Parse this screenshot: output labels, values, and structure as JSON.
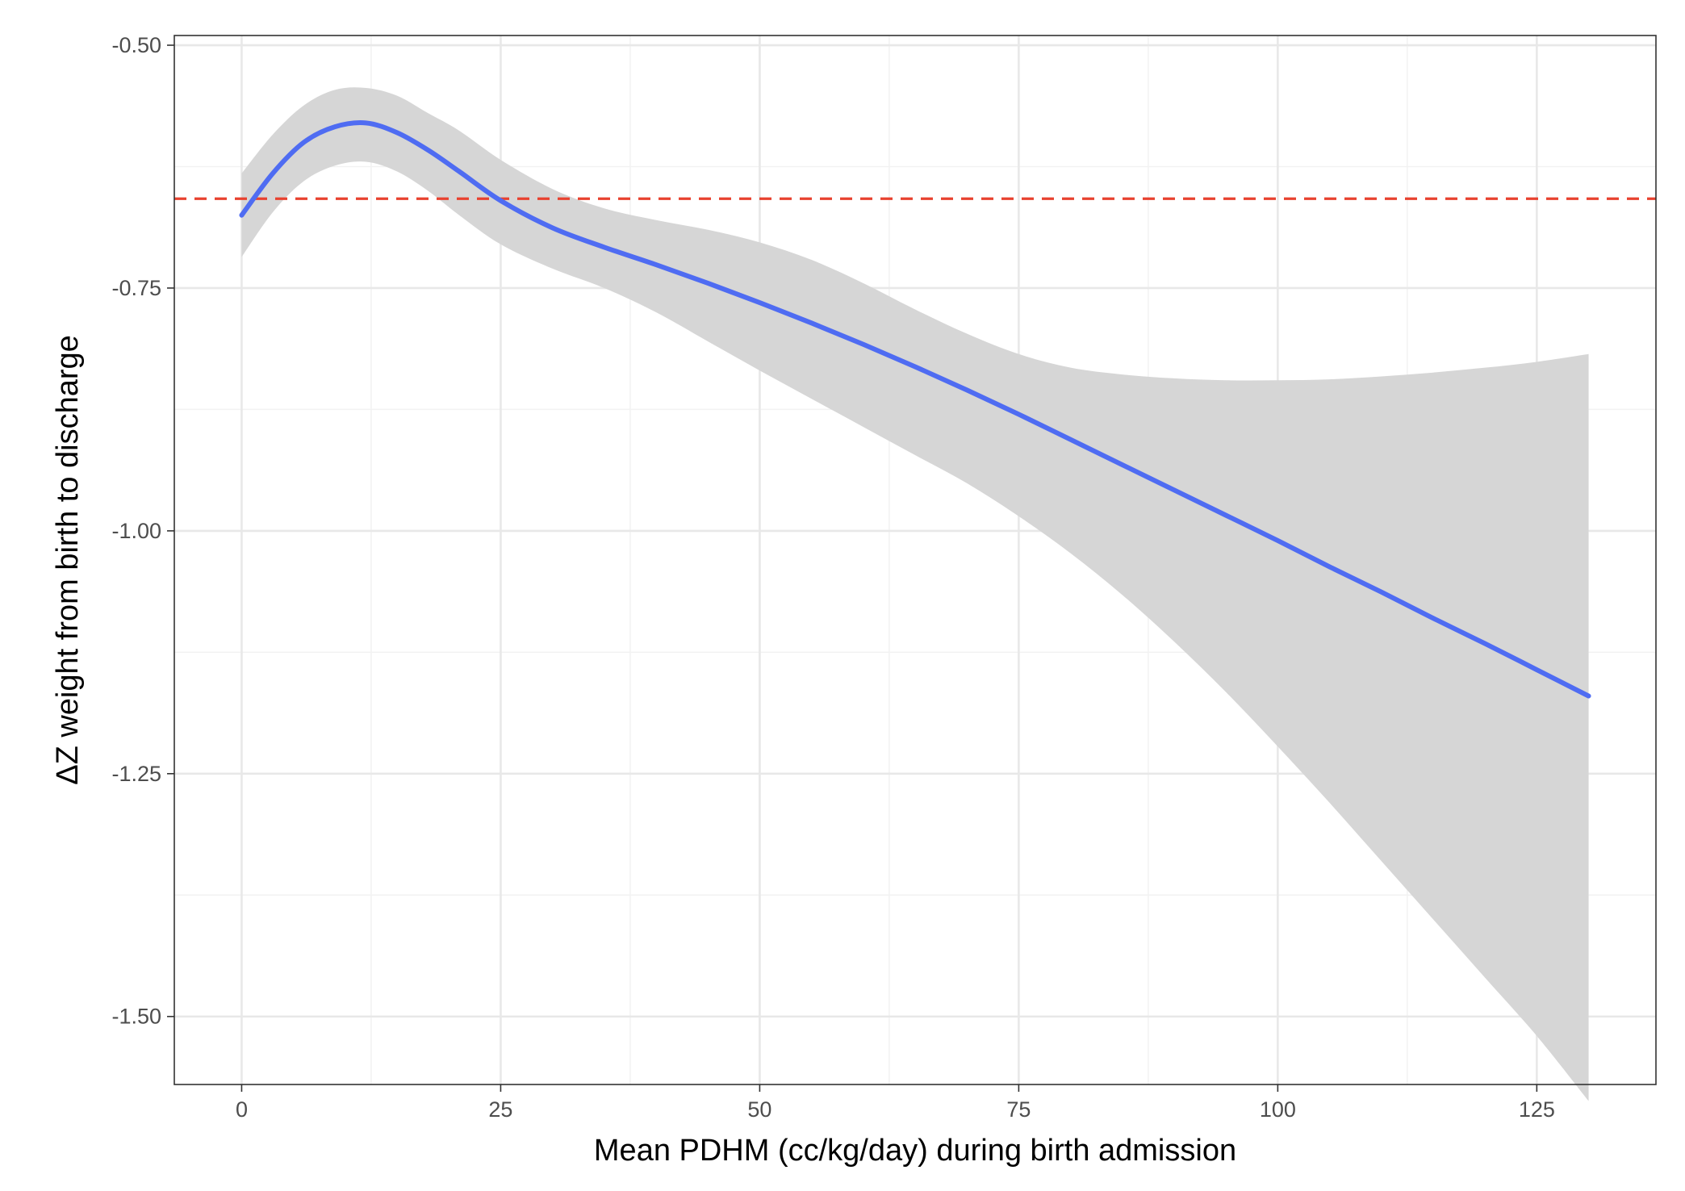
{
  "chart_data": {
    "type": "line",
    "title": "",
    "xlabel": "Mean PDHM (cc/kg/day) during birth admission",
    "ylabel": "ΔZ weight from birth to discharge",
    "xlim": [
      -6.5,
      136.5
    ],
    "ylim": [
      -1.57,
      -0.49
    ],
    "x_ticks": [
      0,
      25,
      50,
      75,
      100,
      125
    ],
    "x_tick_labels": [
      "0",
      "25",
      "50",
      "75",
      "100",
      "125"
    ],
    "y_ticks": [
      -0.5,
      -0.75,
      -1.0,
      -1.25,
      -1.5
    ],
    "y_tick_labels": [
      "-0.50",
      "-0.75",
      "-1.00",
      "-1.25",
      "-1.50"
    ],
    "grid": true,
    "reference_line": {
      "y": -0.658,
      "style": "dashed",
      "color": "#e8412f"
    },
    "series": [
      {
        "line_color": "#4f6cf2",
        "band_color": "#d6d6d6",
        "x": [
          0,
          3,
          6,
          9,
          12,
          15,
          18,
          21,
          25,
          30,
          35,
          40,
          45,
          50,
          55,
          60,
          65,
          70,
          75,
          80,
          85,
          90,
          95,
          100,
          105,
          110,
          115,
          120,
          125,
          130
        ],
        "y": [
          -0.675,
          -0.632,
          -0.6,
          -0.584,
          -0.58,
          -0.59,
          -0.608,
          -0.63,
          -0.66,
          -0.688,
          -0.708,
          -0.726,
          -0.745,
          -0.765,
          -0.786,
          -0.808,
          -0.831,
          -0.855,
          -0.88,
          -0.906,
          -0.932,
          -0.958,
          -0.984,
          -1.01,
          -1.037,
          -1.063,
          -1.09,
          -1.116,
          -1.143,
          -1.17
        ],
        "lower": [
          -0.718,
          -0.672,
          -0.64,
          -0.624,
          -0.62,
          -0.63,
          -0.65,
          -0.675,
          -0.705,
          -0.73,
          -0.75,
          -0.775,
          -0.805,
          -0.835,
          -0.864,
          -0.893,
          -0.922,
          -0.951,
          -0.985,
          -1.023,
          -1.066,
          -1.114,
          -1.166,
          -1.222,
          -1.28,
          -1.34,
          -1.4,
          -1.46,
          -1.52,
          -1.587
        ],
        "upper": [
          -0.632,
          -0.592,
          -0.562,
          -0.546,
          -0.544,
          -0.552,
          -0.57,
          -0.588,
          -0.618,
          -0.648,
          -0.668,
          -0.68,
          -0.69,
          -0.703,
          -0.721,
          -0.745,
          -0.772,
          -0.797,
          -0.818,
          -0.832,
          -0.839,
          -0.843,
          -0.845,
          -0.845,
          -0.844,
          -0.841,
          -0.837,
          -0.832,
          -0.826,
          -0.818
        ]
      }
    ]
  }
}
